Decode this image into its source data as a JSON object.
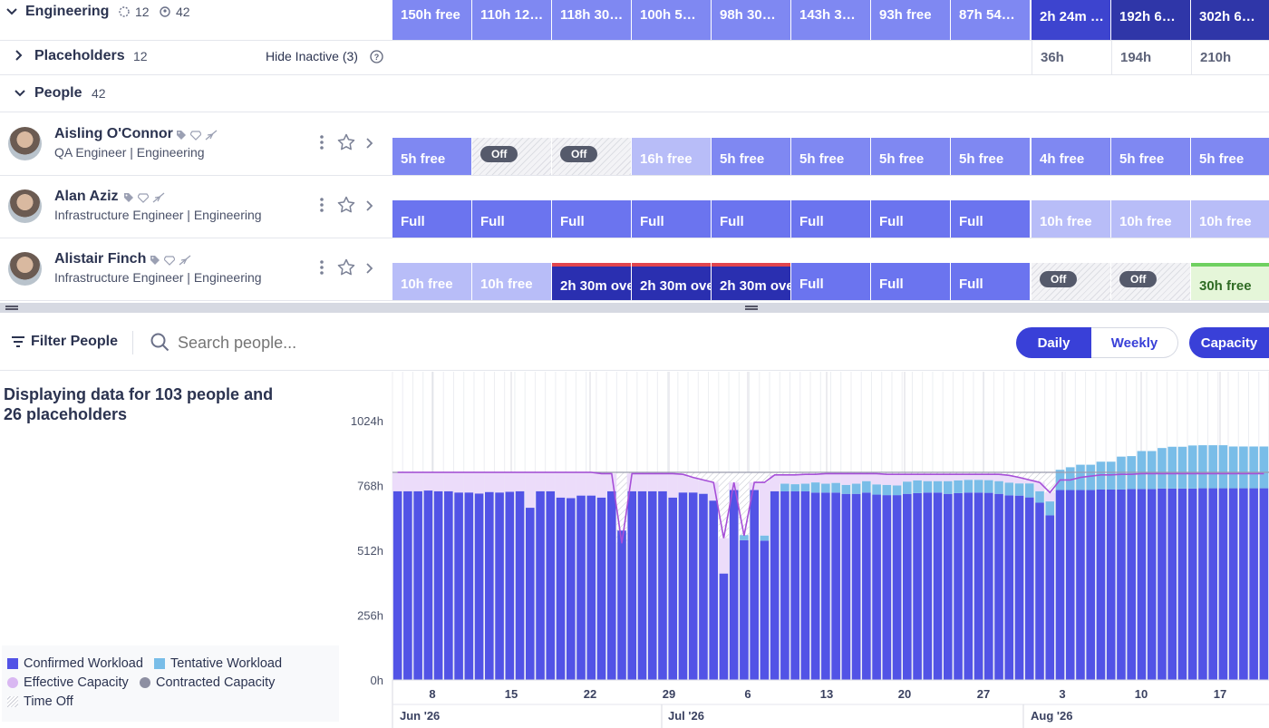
{
  "groups": {
    "engineering": {
      "label": "Engineering",
      "count_a": "12",
      "count_b": "42"
    },
    "placeholders": {
      "label": "Placeholders",
      "count": "12",
      "hide_inactive": "Hide Inactive (3)"
    },
    "people": {
      "label": "People",
      "count": "42"
    }
  },
  "engineering_cells": [
    "150h free",
    "110h 12…",
    "118h 30…",
    "100h 5…",
    "98h 30…",
    "143h 3…",
    "93h free",
    "87h 54…",
    "2h 24m …",
    "192h 6…",
    "302h 6…"
  ],
  "placeholder_cells": [
    "36h",
    "194h",
    "210h"
  ],
  "people": [
    {
      "name": "Aisling O'Connor",
      "role": "QA Engineer | Engineering",
      "cells": [
        "5h free",
        "Off",
        "Off",
        "16h free",
        "5h free",
        "5h free",
        "5h free",
        "5h free",
        "4h free",
        "5h free",
        "5h free"
      ]
    },
    {
      "name": "Alan Aziz",
      "role": "Infrastructure Engineer | Engineering",
      "cells": [
        "Full",
        "Full",
        "Full",
        "Full",
        "Full",
        "Full",
        "Full",
        "Full",
        "10h free",
        "10h free",
        "10h free"
      ]
    },
    {
      "name": "Alistair Finch",
      "role": "Infrastructure Engineer | Engineering",
      "cells": [
        "10h free",
        "10h free",
        "2h 30m ove",
        "2h 30m ove",
        "2h 30m ove",
        "Full",
        "Full",
        "Full",
        "Off",
        "Off",
        "30h free"
      ]
    }
  ],
  "toolbar": {
    "filter_label": "Filter People",
    "search_placeholder": "Search people...",
    "view_daily": "Daily",
    "view_weekly": "Weekly",
    "view_capacity": "Capacity"
  },
  "chart_summary": "Displaying data for 103 people and 26 placeholders",
  "chart_data": {
    "type": "bar",
    "y_ticks": [
      "1024h",
      "768h",
      "512h",
      "256h",
      "0h"
    ],
    "ylim": [
      0,
      1024
    ],
    "x_ticks": [
      "8",
      "15",
      "22",
      "29",
      "6",
      "13",
      "20",
      "27",
      "3",
      "10",
      "17"
    ],
    "months": [
      "Jun '26",
      "Jul '26",
      "Aug '26"
    ],
    "series": [
      {
        "name": "Confirmed Workload",
        "color": "#5253e6",
        "values": [
          745,
          745,
          745,
          748,
          745,
          745,
          740,
          740,
          736,
          742,
          740,
          743,
          745,
          680,
          745,
          745,
          720,
          718,
          728,
          728,
          720,
          745,
          590,
          745,
          745,
          745,
          745,
          720,
          740,
          740,
          735,
          708,
          420,
          750,
          552,
          750,
          550,
          745,
          745,
          745,
          745,
          740,
          740,
          740,
          735,
          735,
          740,
          732,
          730,
          730,
          735,
          738,
          740,
          740,
          735,
          738,
          740,
          740,
          739,
          735,
          729,
          728,
          721,
          700,
          650,
          750,
          750,
          750,
          750,
          752,
          752,
          752,
          754,
          754,
          754,
          756,
          756,
          756,
          756,
          757,
          757,
          757,
          757,
          757,
          757,
          757
        ]
      },
      {
        "name": "Tentative Workload",
        "color": "#79bde8",
        "values": [
          0,
          0,
          0,
          0,
          0,
          0,
          0,
          0,
          0,
          0,
          0,
          0,
          0,
          0,
          0,
          0,
          0,
          0,
          0,
          0,
          0,
          0,
          0,
          0,
          0,
          0,
          0,
          0,
          0,
          0,
          0,
          0,
          0,
          0,
          20,
          0,
          20,
          0,
          30,
          28,
          30,
          40,
          35,
          38,
          35,
          40,
          45,
          40,
          40,
          38,
          48,
          50,
          45,
          45,
          50,
          50,
          50,
          50,
          50,
          50,
          50,
          48,
          55,
          45,
          55,
          80,
          90,
          100,
          100,
          110,
          110,
          130,
          130,
          150,
          150,
          160,
          165,
          165,
          170,
          170,
          170,
          170,
          165,
          165,
          165,
          165
        ]
      },
      {
        "name": "Effective Capacity",
        "color": "#b07ce6",
        "values": [
          820,
          820,
          820,
          820,
          820,
          820,
          820,
          820,
          820,
          820,
          820,
          820,
          820,
          820,
          820,
          820,
          820,
          820,
          820,
          820,
          815,
          815,
          540,
          815,
          815,
          815,
          815,
          815,
          812,
          800,
          790,
          780,
          560,
          780,
          570,
          780,
          780,
          810,
          810,
          810,
          812,
          812,
          815,
          815,
          815,
          815,
          815,
          815,
          812,
          812,
          812,
          812,
          812,
          812,
          812,
          812,
          812,
          812,
          812,
          812,
          808,
          800,
          790,
          780,
          740,
          790,
          790,
          800,
          805,
          810,
          810,
          812,
          812,
          815,
          815,
          815,
          815,
          815,
          815,
          815,
          815,
          815,
          815,
          815,
          815,
          815
        ]
      },
      {
        "name": "Contracted Capacity",
        "color": "#9a9cae",
        "value": 820
      },
      {
        "name": "Time Off",
        "color": "#d4d6de"
      }
    ]
  },
  "legend": [
    "Confirmed Workload",
    "Tentative Workload",
    "Effective Capacity",
    "Contracted Capacity",
    "Time Off"
  ]
}
